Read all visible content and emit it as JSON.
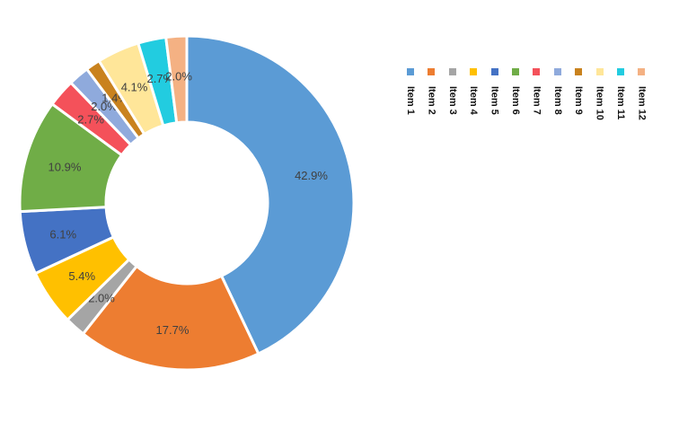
{
  "chart_data": {
    "type": "pie",
    "donut": true,
    "title": "",
    "start_angle": "top",
    "direction": "clockwise",
    "legend_position": "right",
    "slices": [
      {
        "label": "Item 1",
        "value": 42.9,
        "display": "42.9%",
        "color": "#5B9BD5"
      },
      {
        "label": "Item 2",
        "value": 17.7,
        "display": "17.7%",
        "color": "#ED7D31"
      },
      {
        "label": "Item 3",
        "value": 2.0,
        "display": "2.0%",
        "color": "#A5A5A5"
      },
      {
        "label": "Item 4",
        "value": 5.4,
        "display": "5.4%",
        "color": "#FFC000"
      },
      {
        "label": "Item 5",
        "value": 6.1,
        "display": "6.1%",
        "color": "#4472C4"
      },
      {
        "label": "Item 6",
        "value": 10.9,
        "display": "10.9%",
        "color": "#70AD47"
      },
      {
        "label": "Item 7",
        "value": 2.7,
        "display": "2.7%",
        "color": "#F4515A"
      },
      {
        "label": "Item 8",
        "value": 2.0,
        "display": "2.0%",
        "color": "#8FAADC"
      },
      {
        "label": "Item 9",
        "value": 1.4,
        "display": "1.4%",
        "color": "#C9821E"
      },
      {
        "label": "Item 10",
        "value": 4.1,
        "display": "4.1%",
        "color": "#FFE699"
      },
      {
        "label": "Item 11",
        "value": 2.7,
        "display": "2.7%",
        "color": "#22CCE0"
      },
      {
        "label": "Item 12",
        "value": 2.0,
        "display": "2.0%",
        "color": "#F4B183"
      }
    ]
  }
}
